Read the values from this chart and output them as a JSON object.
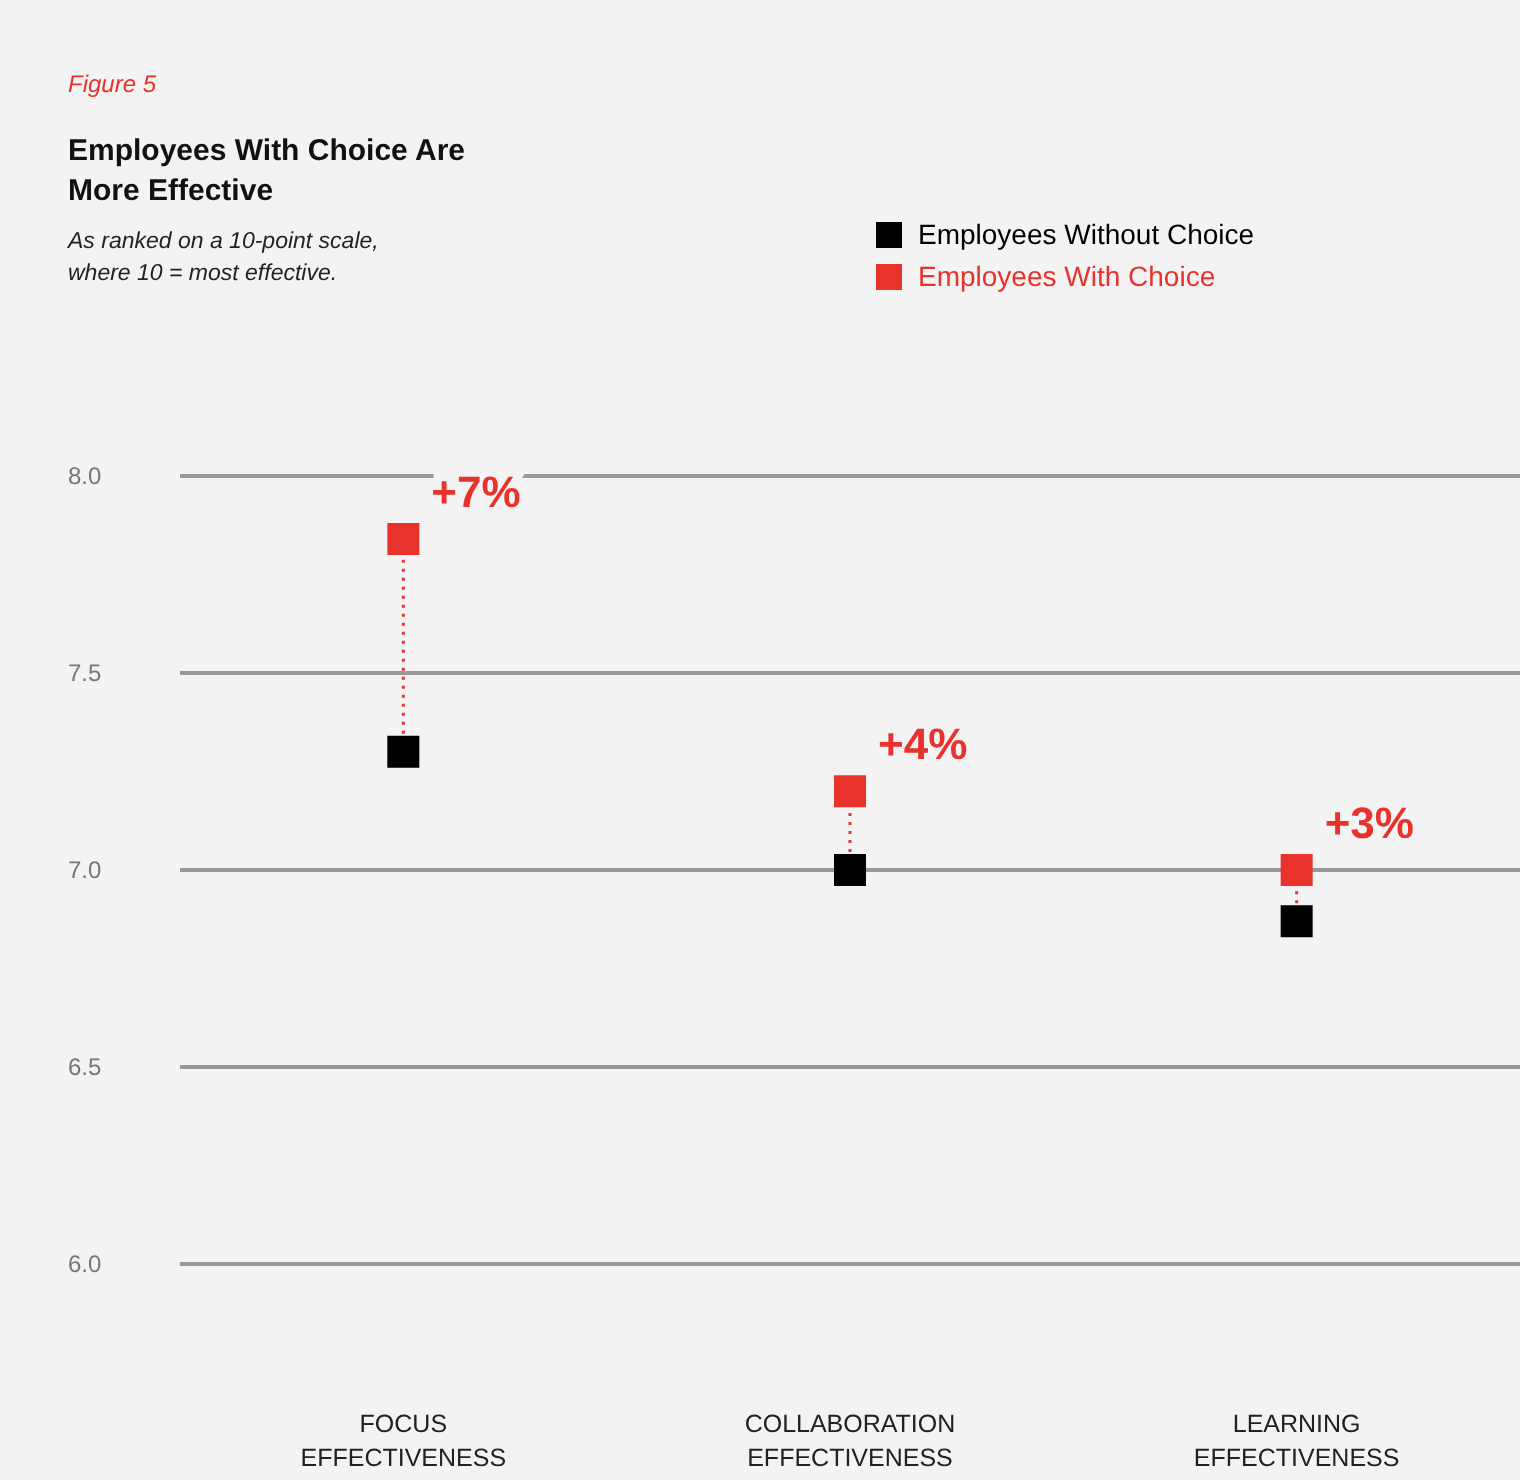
{
  "chart_data": {
    "type": "scatter",
    "title": "Employees With Choice Are More Effective",
    "subtitle": "As ranked on a 10-point scale, where 10 = most effective.",
    "categories": [
      "FOCUS EFFECTIVENESS",
      "COLLABORATION EFFECTIVENESS",
      "LEARNING EFFECTIVENESS"
    ],
    "series": [
      {
        "name": "Employees Without Choice",
        "color": "#000000",
        "values": [
          7.3,
          7.0,
          6.87
        ]
      },
      {
        "name": "Employees With Choice",
        "color": "#e8322b",
        "values": [
          7.84,
          7.2,
          7.0
        ]
      }
    ],
    "ylim": [
      6,
      8
    ],
    "yticks": [
      {
        "value": 6,
        "label": "6.0"
      },
      {
        "value": 6.5,
        "label": "6.5"
      },
      {
        "value": 7,
        "label": "7.0"
      },
      {
        "value": 7.5,
        "label": "7.5"
      },
      {
        "value": 8,
        "label": "8.0"
      }
    ],
    "grid": "y",
    "legend": "top right",
    "marker": "square",
    "annotations": [
      "Figure 5",
      {
        "text": "+7%",
        "x": "FOCUS EFFECTIVENESS",
        "y": 7.84
      },
      {
        "text": "+4%",
        "x": "COLLABORATION EFFECTIVENESS",
        "y": 7.2
      },
      {
        "text": "+3%",
        "x": "LEARNING EFFECTIVENESS",
        "y": 7.0
      }
    ]
  }
}
